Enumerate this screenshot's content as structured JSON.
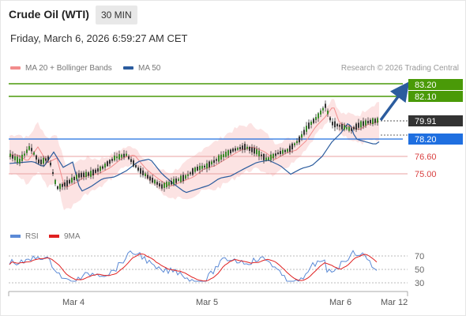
{
  "header": {
    "title": "Crude Oil (WTI)",
    "timeframe": "30 MIN",
    "datetime": "Friday, March 6, 2026 6:59:27 AM CET"
  },
  "legend": {
    "ma20_label": "MA 20 + Bollinger Bands",
    "ma50_label": "MA 50",
    "credit": "Research © 2026 Trading Central",
    "ma20_color": "#f28c8c",
    "ma50_color": "#2b5c9e"
  },
  "levels": {
    "resistance2": "83.20",
    "resistance1": "82.10",
    "last_price": "79.91",
    "pivot": "78.20",
    "support1": "76.60",
    "support2": "75.00",
    "green": "#4a9a08",
    "blue": "#1f6fe0",
    "red": "#d94040",
    "dark": "#333333"
  },
  "rsi": {
    "rsi_label": "RSI",
    "ma_label": "9MA",
    "rsi_color": "#5b8ad6",
    "ma_color": "#e02020",
    "axis_labels": [
      "70",
      "50",
      "30"
    ]
  },
  "x_axis": {
    "labels": [
      "Mar 4",
      "Mar 5",
      "Mar 6",
      "Mar 12"
    ]
  }
}
